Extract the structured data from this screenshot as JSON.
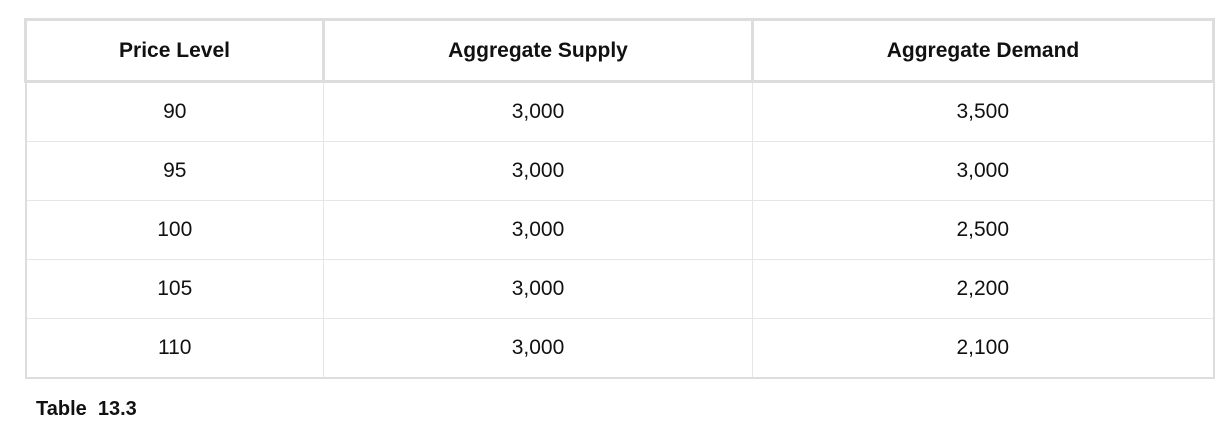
{
  "table": {
    "headers": [
      "Price Level",
      "Aggregate Supply",
      "Aggregate Demand"
    ],
    "rows": [
      [
        "90",
        "3,000",
        "3,500"
      ],
      [
        "95",
        "3,000",
        "3,000"
      ],
      [
        "100",
        "3,000",
        "2,500"
      ],
      [
        "105",
        "3,000",
        "2,200"
      ],
      [
        "110",
        "3,000",
        "2,100"
      ]
    ]
  },
  "caption": "Table  13.3"
}
